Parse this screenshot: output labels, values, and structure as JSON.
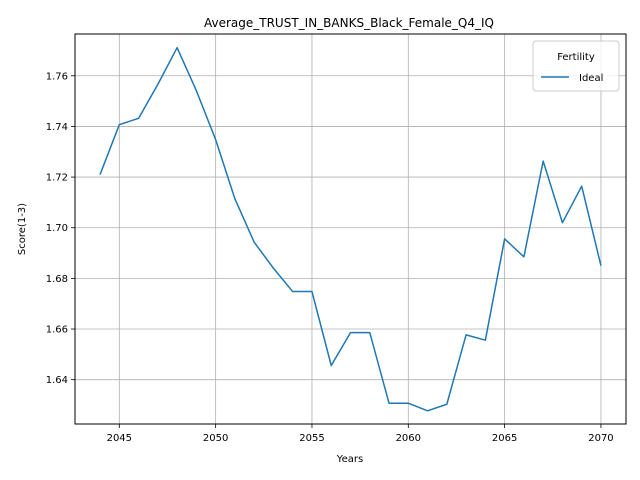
{
  "chart_data": {
    "type": "line",
    "title": "Average_TRUST_IN_BANKS_Black_Female_Q4_IQ",
    "xlabel": "Years",
    "ylabel": "Score(1-3)",
    "xlim": [
      2042.7,
      2071.3
    ],
    "ylim": [
      1.6225,
      1.7765
    ],
    "xticks": [
      2045,
      2050,
      2055,
      2060,
      2065,
      2070
    ],
    "yticks": [
      1.64,
      1.66,
      1.68,
      1.7,
      1.72,
      1.74,
      1.76
    ],
    "ytick_labels": [
      "1.64",
      "1.66",
      "1.68",
      "1.70",
      "1.72",
      "1.74",
      "1.76"
    ],
    "grid": true,
    "legend": {
      "title": "Fertility",
      "placement": "top-right"
    },
    "series": [
      {
        "name": "Ideal",
        "color": "#1f77b4",
        "x": [
          2044,
          2045,
          2046,
          2047,
          2048,
          2049,
          2050,
          2051,
          2052,
          2053,
          2054,
          2055,
          2056,
          2057,
          2058,
          2059,
          2060,
          2061,
          2062,
          2063,
          2064,
          2065,
          2066,
          2067,
          2068,
          2069,
          2070
        ],
        "y": [
          1.721,
          1.7407,
          1.7432,
          1.7566,
          1.7711,
          1.7541,
          1.7348,
          1.7114,
          1.6943,
          1.684,
          1.6748,
          1.6748,
          1.6456,
          1.6586,
          1.6586,
          1.6307,
          1.6307,
          1.6277,
          1.6303,
          1.6577,
          1.6556,
          1.6956,
          1.6885,
          1.7263,
          1.702,
          1.7164,
          1.685
        ]
      }
    ]
  }
}
